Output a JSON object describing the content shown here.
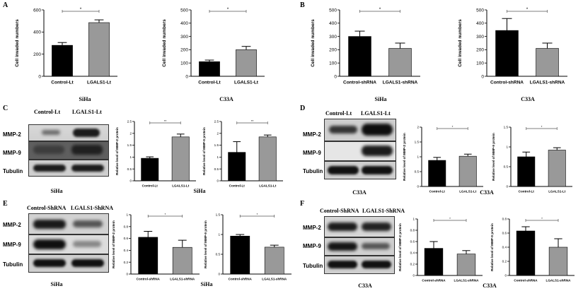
{
  "panels": {
    "A": "A",
    "B": "B",
    "C": "C",
    "D": "D",
    "E": "E",
    "F": "F"
  },
  "captions": {
    "A_left": "SiHa",
    "A_right": "C33A",
    "B_left": "SiHa",
    "B_right": "C33A",
    "C_blot": "SiHa",
    "C_chart": "SiHa",
    "D_blot": "C33A",
    "D_chart": "C33A",
    "E_blot": "SiHa",
    "E_chart": "SiHa",
    "F_blot": "C33A",
    "F_chart": "C33A"
  },
  "blots": {
    "C": {
      "lanes": [
        "Control-Lt",
        "LGALS1-Lt"
      ],
      "rows": [
        "MMP-2",
        "MMP-9",
        "Tubulin"
      ]
    },
    "D": {
      "lanes": [
        "Control-Lt",
        "LGALS1-Lt"
      ],
      "rows": [
        "MMP-2",
        "MMP-9",
        "Tubulin"
      ]
    },
    "E": {
      "lanes": [
        "Control-ShRNA",
        "LGALS1-ShRNA"
      ],
      "rows": [
        "MMP-2",
        "MMP-9",
        "Tubulin"
      ]
    },
    "F": {
      "lanes": [
        "Control-ShRNA",
        "LGALS1-ShRNA"
      ],
      "rows": [
        "MMP-2",
        "MMP-9",
        "Tubulin"
      ]
    }
  },
  "chart_data": [
    {
      "id": "A1",
      "type": "bar",
      "categories": [
        "Control-Lt",
        "LGALS1-Lt"
      ],
      "values": [
        280,
        485
      ],
      "errors": [
        25,
        25
      ],
      "ylabel": "Cell invaded numbers",
      "ylim": [
        0,
        600
      ],
      "yticks": [
        0,
        200,
        400,
        600
      ],
      "sig": "*",
      "colors": [
        "#000000",
        "#999999"
      ]
    },
    {
      "id": "A2",
      "type": "bar",
      "categories": [
        "Control-Lt",
        "LGALS1-Lt"
      ],
      "values": [
        110,
        200
      ],
      "errors": [
        12,
        25
      ],
      "ylabel": "Cell invaded numbers",
      "ylim": [
        0,
        500
      ],
      "yticks": [
        0,
        100,
        200,
        300,
        400,
        500
      ],
      "sig": "*",
      "colors": [
        "#000000",
        "#999999"
      ]
    },
    {
      "id": "B1",
      "type": "bar",
      "categories": [
        "Control-shRNA",
        "LGALS1-shRNA"
      ],
      "values": [
        300,
        210
      ],
      "errors": [
        40,
        40
      ],
      "ylabel": "Cell invaded numbers",
      "ylim": [
        0,
        500
      ],
      "yticks": [
        0,
        100,
        200,
        300,
        400,
        500
      ],
      "sig": "*",
      "colors": [
        "#000000",
        "#999999"
      ]
    },
    {
      "id": "B2",
      "type": "bar",
      "categories": [
        "Control-shRNA",
        "LGALS1-shRNA"
      ],
      "values": [
        345,
        210
      ],
      "errors": [
        90,
        40
      ],
      "ylabel": "Cell invaded numbers",
      "ylim": [
        0,
        500
      ],
      "yticks": [
        0,
        100,
        200,
        300,
        400,
        500
      ],
      "sig": "*",
      "colors": [
        "#000000",
        "#999999"
      ]
    },
    {
      "id": "C1",
      "type": "bar",
      "categories": [
        "Control-Lt",
        "LGALS1-Lt"
      ],
      "values": [
        0.95,
        1.85
      ],
      "errors": [
        0.06,
        0.12
      ],
      "ylabel": "Relative level of MMP-2 protein",
      "ylim": [
        0,
        2.5
      ],
      "yticks": [
        0,
        0.5,
        1.0,
        1.5,
        2.0,
        2.5
      ],
      "sig": "**",
      "colors": [
        "#000000",
        "#999999"
      ]
    },
    {
      "id": "C2",
      "type": "bar",
      "categories": [
        "Control-Lt",
        "LGALS1-Lt"
      ],
      "values": [
        1.2,
        1.85
      ],
      "errors": [
        0.45,
        0.08
      ],
      "ylabel": "Relative level of MMP-9 protein",
      "ylim": [
        0,
        2.5
      ],
      "yticks": [
        0,
        0.5,
        1.0,
        1.5,
        2.0,
        2.5
      ],
      "sig": "**",
      "colors": [
        "#000000",
        "#999999"
      ]
    },
    {
      "id": "D1",
      "type": "bar",
      "categories": [
        "Control-Lt",
        "LGALS1-Lt"
      ],
      "values": [
        0.88,
        1.02
      ],
      "errors": [
        0.1,
        0.07
      ],
      "ylabel": "Relative level of MMP-2 protein",
      "ylim": [
        0,
        2.0
      ],
      "yticks": [
        0,
        0.5,
        1.0,
        1.5,
        2.0
      ],
      "sig": "*",
      "colors": [
        "#000000",
        "#999999"
      ]
    },
    {
      "id": "D2",
      "type": "bar",
      "categories": [
        "Control-Lt",
        "LGALS1-Lt"
      ],
      "values": [
        0.75,
        0.92
      ],
      "errors": [
        0.12,
        0.06
      ],
      "ylabel": "Relative level of MMP-9 protein",
      "ylim": [
        0,
        1.5
      ],
      "yticks": [
        0,
        0.5,
        1.0,
        1.5
      ],
      "sig": "*",
      "colors": [
        "#000000",
        "#999999"
      ]
    },
    {
      "id": "E1",
      "type": "bar",
      "categories": [
        "Control-shRNA",
        "LGALS1-shRNA"
      ],
      "values": [
        0.62,
        0.45
      ],
      "errors": [
        0.1,
        0.12
      ],
      "ylabel": "Relative level of MMP-2 protein",
      "ylim": [
        0,
        1.0
      ],
      "yticks": [
        0,
        0.2,
        0.4,
        0.6,
        0.8,
        1.0
      ],
      "sig": "*",
      "colors": [
        "#000000",
        "#999999"
      ]
    },
    {
      "id": "E2",
      "type": "bar",
      "categories": [
        "Control-shRNA",
        "LGALS1-shRNA"
      ],
      "values": [
        0.96,
        0.68
      ],
      "errors": [
        0.04,
        0.05
      ],
      "ylabel": "Relative level of MMP-9 protein",
      "ylim": [
        0,
        1.5
      ],
      "yticks": [
        0,
        0.5,
        1.0,
        1.5
      ],
      "sig": "*",
      "colors": [
        "#000000",
        "#999999"
      ]
    },
    {
      "id": "F1",
      "type": "bar",
      "categories": [
        "Control-shRNA",
        "LGALS1-shRNA"
      ],
      "values": [
        0.48,
        0.38
      ],
      "errors": [
        0.12,
        0.06
      ],
      "ylabel": "Relative level of MMP-2 protein",
      "ylim": [
        0,
        1.0
      ],
      "yticks": [
        0,
        0.2,
        0.4,
        0.6,
        0.8,
        1.0
      ],
      "sig": "*",
      "colors": [
        "#000000",
        "#999999"
      ]
    },
    {
      "id": "F2",
      "type": "bar",
      "categories": [
        "Control-shRNA",
        "LGALS1-shRNA"
      ],
      "values": [
        0.63,
        0.4
      ],
      "errors": [
        0.06,
        0.12
      ],
      "ylabel": "Relative level of MMP-9 protein",
      "ylim": [
        0,
        0.8
      ],
      "yticks": [
        0,
        0.2,
        0.4,
        0.6,
        0.8
      ],
      "sig": "*",
      "colors": [
        "#000000",
        "#999999"
      ]
    }
  ]
}
